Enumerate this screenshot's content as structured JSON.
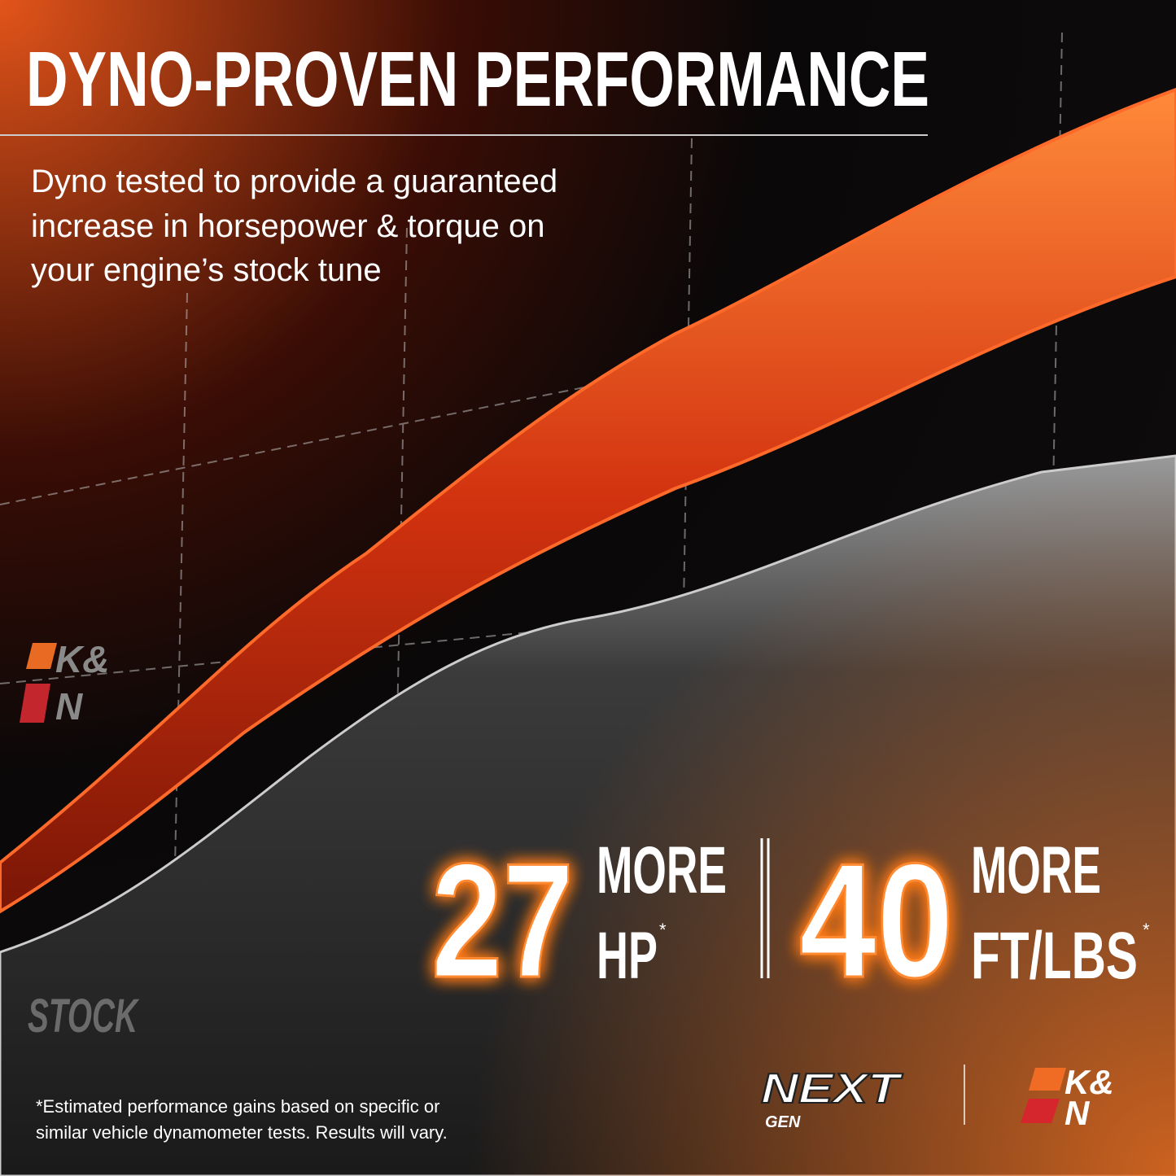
{
  "header": {
    "title": "DYNO-PROVEN PERFORMANCE"
  },
  "description": {
    "lines": [
      "Dyno tested to provide a guaranteed",
      "increase in horsepower & torque on",
      "your engine’s stock tune"
    ]
  },
  "chart_label": "STOCK",
  "stats": [
    {
      "number": "27",
      "word": "MORE",
      "unit": "HP",
      "mark": "*"
    },
    {
      "number": "40",
      "word": "MORE",
      "unit": "FT/LBS",
      "mark": "*"
    }
  ],
  "footnote": {
    "lines": [
      "*Estimated performance gains based on specific or",
      "similar vehicle dynamometer tests. Results will vary."
    ]
  },
  "logos": {
    "brand": {
      "top": "K&",
      "bottom": "N"
    },
    "series": {
      "top": "NEXT",
      "bottom": "GEN"
    }
  }
}
